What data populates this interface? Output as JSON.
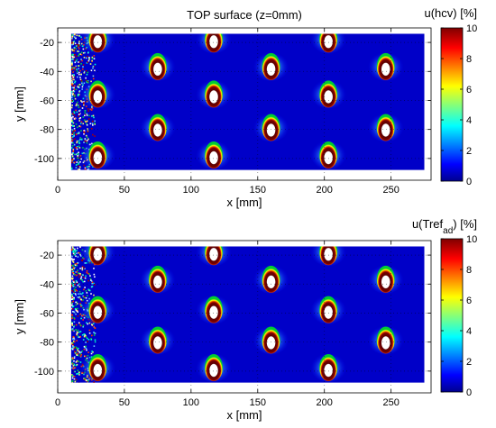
{
  "chart_data": [
    {
      "type": "heatmap",
      "title": "TOP surface (z=0mm)",
      "xlabel": "x [mm]",
      "ylabel": "y [mm]",
      "colorbar_label": "u(hcv) [%]",
      "colorbar_label_base": "u(hcv) [%]",
      "colorbar_label_sub": "",
      "colorbar_label_tail": "",
      "xlim": [
        0,
        280
      ],
      "ylim": [
        -115,
        -10
      ],
      "data_extent_x": [
        10,
        275
      ],
      "data_extent_y": [
        -108,
        -14
      ],
      "xticks": [
        0,
        50,
        100,
        150,
        200,
        250
      ],
      "yticks": [
        -20,
        -40,
        -60,
        -80,
        -100
      ],
      "clim": [
        0,
        10
      ],
      "cticks": [
        0,
        2,
        4,
        6,
        8,
        10
      ],
      "colormap": "jet",
      "grid": true,
      "hotspots": [
        {
          "x": 30,
          "y": -17,
          "peak": 10
        },
        {
          "x": 30,
          "y": -55,
          "peak": 10
        },
        {
          "x": 30,
          "y": -97,
          "peak": 10
        },
        {
          "x": 75,
          "y": -36,
          "peak": 10
        },
        {
          "x": 75,
          "y": -78,
          "peak": 10
        },
        {
          "x": 117,
          "y": -17,
          "peak": 10
        },
        {
          "x": 117,
          "y": -55,
          "peak": 10
        },
        {
          "x": 117,
          "y": -97,
          "peak": 10
        },
        {
          "x": 160,
          "y": -36,
          "peak": 10
        },
        {
          "x": 160,
          "y": -78,
          "peak": 10
        },
        {
          "x": 203,
          "y": -17,
          "peak": 10
        },
        {
          "x": 203,
          "y": -55,
          "peak": 10
        },
        {
          "x": 203,
          "y": -97,
          "peak": 10
        },
        {
          "x": 246,
          "y": -36,
          "peak": 10
        },
        {
          "x": 246,
          "y": -78,
          "peak": 10
        }
      ]
    },
    {
      "type": "heatmap",
      "title": "",
      "xlabel": "x [mm]",
      "ylabel": "y [mm]",
      "colorbar_label": "u(Tref_ad) [%]",
      "colorbar_label_base": "u(Tref",
      "colorbar_label_sub": "ad",
      "colorbar_label_tail": ") [%]",
      "xlim": [
        0,
        280
      ],
      "ylim": [
        -115,
        -10
      ],
      "data_extent_x": [
        10,
        275
      ],
      "data_extent_y": [
        -108,
        -14
      ],
      "xticks": [
        0,
        50,
        100,
        150,
        200,
        250
      ],
      "yticks": [
        -20,
        -40,
        -60,
        -80,
        -100
      ],
      "clim": [
        0,
        10
      ],
      "cticks": [
        0,
        2,
        4,
        6,
        8,
        10
      ],
      "colormap": "jet",
      "grid": true,
      "hotspots": [
        {
          "x": 30,
          "y": -17,
          "peak": 10
        },
        {
          "x": 30,
          "y": -57,
          "peak": 10
        },
        {
          "x": 30,
          "y": -97,
          "peak": 10
        },
        {
          "x": 75,
          "y": -36,
          "peak": 10
        },
        {
          "x": 75,
          "y": -78,
          "peak": 10
        },
        {
          "x": 117,
          "y": -17,
          "peak": 10
        },
        {
          "x": 117,
          "y": -57,
          "peak": 10
        },
        {
          "x": 117,
          "y": -97,
          "peak": 10
        },
        {
          "x": 160,
          "y": -36,
          "peak": 10
        },
        {
          "x": 160,
          "y": -78,
          "peak": 10
        },
        {
          "x": 203,
          "y": -17,
          "peak": 10
        },
        {
          "x": 203,
          "y": -57,
          "peak": 10
        },
        {
          "x": 203,
          "y": -97,
          "peak": 10
        },
        {
          "x": 246,
          "y": -36,
          "peak": 10
        },
        {
          "x": 246,
          "y": -78,
          "peak": 10
        }
      ]
    }
  ]
}
